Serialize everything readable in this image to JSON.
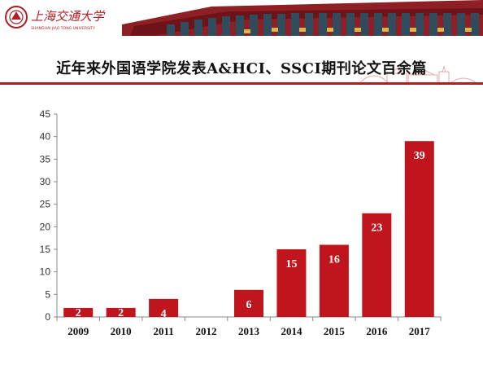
{
  "header": {
    "logo_text": "上海交通大学",
    "logo_subtext": "SHANGHAI JIAO TONG UNIVERSITY"
  },
  "slide": {
    "title": "近年来外国语学院发表A&HCI、SSCI期刊论文百余篇"
  },
  "colors": {
    "accent": "#b01e23",
    "bar": "#c0151d",
    "roof": "#8e1f24"
  },
  "chart_data": {
    "type": "bar",
    "categories": [
      "2009",
      "2010",
      "2011",
      "2012",
      "2013",
      "2014",
      "2015",
      "2016",
      "2017"
    ],
    "values": [
      2,
      2,
      4,
      0,
      6,
      15,
      16,
      23,
      39
    ],
    "data_labels": [
      "2",
      "2",
      "4",
      "",
      "6",
      "15",
      "16",
      "23",
      "39"
    ],
    "y_ticks": [
      "0",
      "5",
      "10",
      "15",
      "20",
      "25",
      "30",
      "35",
      "40",
      "45"
    ],
    "ylim": [
      0,
      45
    ],
    "title": "",
    "xlabel": "",
    "ylabel": "",
    "grid": false,
    "legend": "none"
  }
}
